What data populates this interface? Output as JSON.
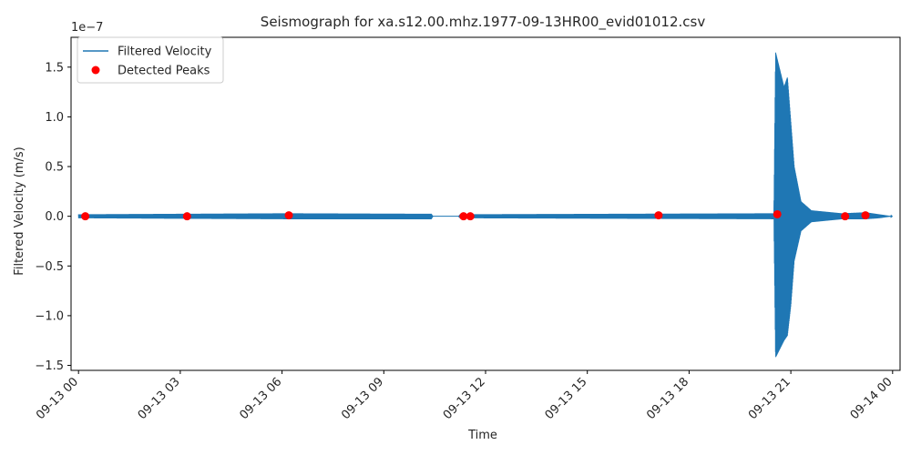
{
  "chart_data": {
    "type": "line",
    "title": "Seismograph for xa.s12.00.mhz.1977-09-13HR00_evid01012.csv",
    "xlabel": "Time",
    "ylabel": "Filtered Velocity (m/s)",
    "y_offset_label": "1e−7",
    "y_scale": 1e-07,
    "ylim": [
      -1.55,
      1.8
    ],
    "xlim_hours": [
      -0.22,
      24.22
    ],
    "x_ticks": [
      {
        "hour": 0,
        "label": "09-13 00"
      },
      {
        "hour": 3,
        "label": "09-13 03"
      },
      {
        "hour": 6,
        "label": "09-13 06"
      },
      {
        "hour": 9,
        "label": "09-13 09"
      },
      {
        "hour": 12,
        "label": "09-13 12"
      },
      {
        "hour": 15,
        "label": "09-13 15"
      },
      {
        "hour": 18,
        "label": "09-13 18"
      },
      {
        "hour": 21,
        "label": "09-13 21"
      },
      {
        "hour": 24,
        "label": "09-14 00"
      }
    ],
    "y_ticks": [
      {
        "value": 1.5,
        "label": "1.5"
      },
      {
        "value": 1.0,
        "label": "1.0"
      },
      {
        "value": 0.5,
        "label": "0.5"
      },
      {
        "value": 0.0,
        "label": "0.0"
      },
      {
        "value": -0.5,
        "label": "−0.5"
      },
      {
        "value": -1.0,
        "label": "−1.0"
      },
      {
        "value": -1.5,
        "label": "−1.5"
      }
    ],
    "series": [
      {
        "name": "Filtered Velocity",
        "color": "#1f77b4",
        "kind": "line",
        "envelope": [
          {
            "hour": 0.0,
            "upper": 0.02,
            "lower": -0.02
          },
          {
            "hour": 6.1,
            "upper": 0.03,
            "lower": -0.03
          },
          {
            "hour": 10.4,
            "upper": 0.025,
            "lower": -0.03
          },
          {
            "hour": 10.45,
            "upper": 0.0,
            "lower": 0.0
          },
          {
            "hour": 11.2,
            "upper": 0.0,
            "lower": 0.0
          },
          {
            "hour": 11.25,
            "upper": 0.02,
            "lower": -0.02
          },
          {
            "hour": 20.5,
            "upper": 0.03,
            "lower": -0.03
          },
          {
            "hour": 20.55,
            "upper": 1.65,
            "lower": -1.42
          },
          {
            "hour": 20.8,
            "upper": 1.3,
            "lower": -1.25
          },
          {
            "hour": 20.9,
            "upper": 1.4,
            "lower": -1.2
          },
          {
            "hour": 21.0,
            "upper": 0.95,
            "lower": -0.9
          },
          {
            "hour": 21.1,
            "upper": 0.5,
            "lower": -0.45
          },
          {
            "hour": 21.3,
            "upper": 0.15,
            "lower": -0.15
          },
          {
            "hour": 21.6,
            "upper": 0.06,
            "lower": -0.06
          },
          {
            "hour": 22.5,
            "upper": 0.03,
            "lower": -0.03
          },
          {
            "hour": 23.2,
            "upper": 0.04,
            "lower": -0.03
          },
          {
            "hour": 23.6,
            "upper": 0.02,
            "lower": -0.02
          },
          {
            "hour": 24.0,
            "upper": 0.0,
            "lower": 0.0
          }
        ]
      },
      {
        "name": "Detected Peaks",
        "color": "#ff0000",
        "kind": "scatter",
        "points": [
          {
            "hour": 0.2,
            "value": 0.0
          },
          {
            "hour": 3.2,
            "value": 0.0
          },
          {
            "hour": 6.2,
            "value": 0.01
          },
          {
            "hour": 11.35,
            "value": 0.0
          },
          {
            "hour": 11.55,
            "value": 0.0
          },
          {
            "hour": 17.1,
            "value": 0.01
          },
          {
            "hour": 20.6,
            "value": 0.02
          },
          {
            "hour": 22.6,
            "value": 0.0
          },
          {
            "hour": 23.2,
            "value": 0.01
          }
        ]
      }
    ],
    "legend_position": "upper-left",
    "grid": false
  }
}
